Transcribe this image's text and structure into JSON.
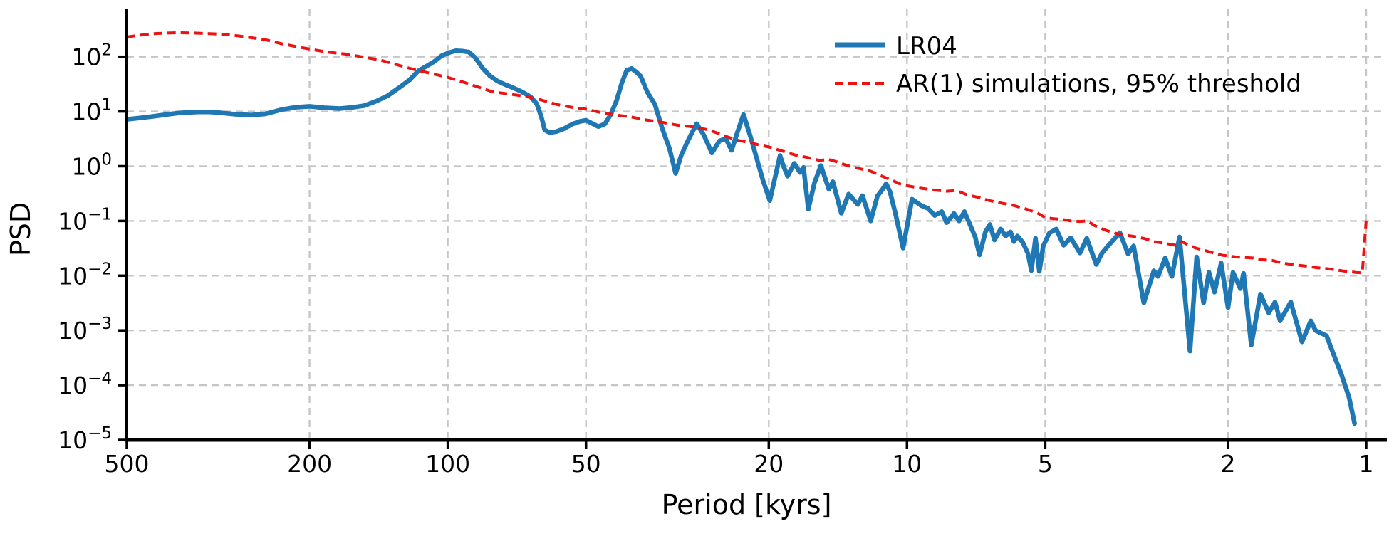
{
  "figure": {
    "background": "#ffffff"
  },
  "style": {
    "grid_color": "#c6c6c6",
    "grid_dash": "10 7",
    "grid_width": 2.4,
    "spine_color": "#000000",
    "tick_color": "#000000",
    "text_color": "#000000"
  },
  "legend": {
    "position": "upper right",
    "items": [
      {
        "label": "LR04",
        "color": "#1f77b4",
        "style": "solid"
      },
      {
        "label": "AR(1) simulations, 95% threshold",
        "color": "#ee1111",
        "style": "dashed"
      }
    ]
  },
  "chart_data": {
    "type": "line",
    "title": "",
    "xlabel": "Period [kyrs]",
    "ylabel": "PSD",
    "grid": true,
    "legend_position": "upper right",
    "x_axis": {
      "scale": "log",
      "inverted": true,
      "unit": "kyrs",
      "ticks": [
        500,
        200,
        100,
        50,
        20,
        10,
        5,
        2,
        1
      ],
      "range": [
        500,
        0.91
      ]
    },
    "y_axis": {
      "scale": "log",
      "tick_exponents": [
        2,
        1,
        0,
        -1,
        -2,
        -3,
        -4,
        -5
      ],
      "range_exponents": [
        -5,
        2.88
      ]
    },
    "series": [
      {
        "name": "LR04",
        "color": "#1f77b4",
        "line_style": "solid",
        "line_width": 6.5,
        "points": [
          [
            500,
            7.2
          ],
          [
            470,
            7.6
          ],
          [
            440,
            8.1
          ],
          [
            410,
            8.8
          ],
          [
            385,
            9.4
          ],
          [
            350,
            9.8
          ],
          [
            330,
            9.8
          ],
          [
            315,
            9.5
          ],
          [
            290,
            8.9
          ],
          [
            268,
            8.6
          ],
          [
            250,
            9.0
          ],
          [
            230,
            10.8
          ],
          [
            215,
            11.9
          ],
          [
            200,
            12.4
          ],
          [
            186,
            11.7
          ],
          [
            172,
            11.3
          ],
          [
            161,
            11.9
          ],
          [
            152,
            12.8
          ],
          [
            143,
            15.5
          ],
          [
            135,
            19.5
          ],
          [
            127,
            28
          ],
          [
            121,
            38
          ],
          [
            116,
            55
          ],
          [
            111,
            68
          ],
          [
            107,
            82
          ],
          [
            103,
            105
          ],
          [
            99,
            120
          ],
          [
            96,
            129
          ],
          [
            93,
            127
          ],
          [
            90,
            122
          ],
          [
            87,
            95
          ],
          [
            84,
            62
          ],
          [
            81,
            45
          ],
          [
            78,
            36
          ],
          [
            75,
            31
          ],
          [
            72,
            27
          ],
          [
            69,
            23
          ],
          [
            66,
            18.5
          ],
          [
            64,
            13.8
          ],
          [
            62.5,
            7.8
          ],
          [
            61.5,
            4.6
          ],
          [
            60,
            4.1
          ],
          [
            58,
            4.3
          ],
          [
            56,
            4.8
          ],
          [
            53.5,
            5.9
          ],
          [
            51.5,
            6.6
          ],
          [
            50,
            6.9
          ],
          [
            48.6,
            6.1
          ],
          [
            47,
            5.3
          ],
          [
            45.5,
            5.9
          ],
          [
            44.2,
            8.7
          ],
          [
            42.9,
            15.8
          ],
          [
            41.8,
            33
          ],
          [
            40.8,
            56
          ],
          [
            39.8,
            61
          ],
          [
            38.8,
            52
          ],
          [
            38,
            44
          ],
          [
            36.8,
            23
          ],
          [
            35.4,
            13.5
          ],
          [
            34.1,
            4.8
          ],
          [
            32.9,
            2.1
          ],
          [
            31.9,
            0.74
          ],
          [
            31,
            1.6
          ],
          [
            29.9,
            3.1
          ],
          [
            28.7,
            6.0
          ],
          [
            27.7,
            3.7
          ],
          [
            26.6,
            1.75
          ],
          [
            25.6,
            2.9
          ],
          [
            24.8,
            3.2
          ],
          [
            24.1,
            1.95
          ],
          [
            23.4,
            4.2
          ],
          [
            22.7,
            8.8
          ],
          [
            21.9,
            3.4
          ],
          [
            21.3,
            1.5
          ],
          [
            20.6,
            0.56
          ],
          [
            19.9,
            0.235
          ],
          [
            18.9,
            1.56
          ],
          [
            18.6,
            1.03
          ],
          [
            18.2,
            0.66
          ],
          [
            17.6,
            1.13
          ],
          [
            17.1,
            0.77
          ],
          [
            16.8,
            0.95
          ],
          [
            16.4,
            0.165
          ],
          [
            15.9,
            0.5
          ],
          [
            15.4,
            1.03
          ],
          [
            14.8,
            0.38
          ],
          [
            14.5,
            0.52
          ],
          [
            13.9,
            0.138
          ],
          [
            13.4,
            0.31
          ],
          [
            12.8,
            0.2
          ],
          [
            12.5,
            0.29
          ],
          [
            12.0,
            0.1
          ],
          [
            11.6,
            0.285
          ],
          [
            11.3,
            0.38
          ],
          [
            11.1,
            0.48
          ],
          [
            10.9,
            0.35
          ],
          [
            10.6,
            0.138
          ],
          [
            10.2,
            0.032
          ],
          [
            9.75,
            0.25
          ],
          [
            9.3,
            0.19
          ],
          [
            9.0,
            0.17
          ],
          [
            8.7,
            0.126
          ],
          [
            8.4,
            0.148
          ],
          [
            8.2,
            0.093
          ],
          [
            7.9,
            0.137
          ],
          [
            7.7,
            0.1
          ],
          [
            7.5,
            0.148
          ],
          [
            7.3,
            0.088
          ],
          [
            7.1,
            0.05
          ],
          [
            6.95,
            0.024
          ],
          [
            6.75,
            0.063
          ],
          [
            6.6,
            0.086
          ],
          [
            6.45,
            0.045
          ],
          [
            6.25,
            0.071
          ],
          [
            6.1,
            0.053
          ],
          [
            5.95,
            0.063
          ],
          [
            5.85,
            0.042
          ],
          [
            5.75,
            0.053
          ],
          [
            5.6,
            0.041
          ],
          [
            5.45,
            0.025
          ],
          [
            5.36,
            0.0124
          ],
          [
            5.25,
            0.048
          ],
          [
            5.15,
            0.012
          ],
          [
            5.05,
            0.035
          ],
          [
            4.9,
            0.06
          ],
          [
            4.73,
            0.071
          ],
          [
            4.56,
            0.036
          ],
          [
            4.4,
            0.049
          ],
          [
            4.2,
            0.026
          ],
          [
            4.06,
            0.048
          ],
          [
            3.87,
            0.016
          ],
          [
            3.76,
            0.026
          ],
          [
            3.65,
            0.035
          ],
          [
            3.44,
            0.061
          ],
          [
            3.3,
            0.025
          ],
          [
            3.21,
            0.035
          ],
          [
            3.05,
            0.0032
          ],
          [
            2.9,
            0.0123
          ],
          [
            2.84,
            0.0097
          ],
          [
            2.74,
            0.021
          ],
          [
            2.65,
            0.0097
          ],
          [
            2.55,
            0.051
          ],
          [
            2.42,
            0.00042
          ],
          [
            2.34,
            0.022
          ],
          [
            2.26,
            0.0032
          ],
          [
            2.2,
            0.0115
          ],
          [
            2.14,
            0.005
          ],
          [
            2.07,
            0.017
          ],
          [
            2.0,
            0.0026
          ],
          [
            1.95,
            0.0115
          ],
          [
            1.88,
            0.0058
          ],
          [
            1.85,
            0.011
          ],
          [
            1.78,
            0.00054
          ],
          [
            1.7,
            0.0046
          ],
          [
            1.63,
            0.0021
          ],
          [
            1.58,
            0.0033
          ],
          [
            1.54,
            0.0015
          ],
          [
            1.46,
            0.0033
          ],
          [
            1.38,
            0.00062
          ],
          [
            1.32,
            0.0015
          ],
          [
            1.29,
            0.001
          ],
          [
            1.22,
            0.0008
          ],
          [
            1.18,
            0.00038
          ],
          [
            1.13,
            0.00015
          ],
          [
            1.09,
            6e-05
          ],
          [
            1.06,
            2e-05
          ]
        ]
      },
      {
        "name": "AR(1) simulations, 95% threshold",
        "color": "#ee1111",
        "line_style": "dashed",
        "line_width": 4,
        "points": [
          [
            500,
            230
          ],
          [
            460,
            252
          ],
          [
            430,
            266
          ],
          [
            400,
            273
          ],
          [
            385,
            275
          ],
          [
            360,
            272
          ],
          [
            330,
            265
          ],
          [
            310,
            258
          ],
          [
            285,
            240
          ],
          [
            270,
            225
          ],
          [
            250,
            205
          ],
          [
            230,
            173
          ],
          [
            215,
            155
          ],
          [
            200,
            138
          ],
          [
            183,
            122
          ],
          [
            167,
            112
          ],
          [
            152,
            98
          ],
          [
            141,
            88
          ],
          [
            128,
            70
          ],
          [
            116,
            56
          ],
          [
            107,
            48
          ],
          [
            100,
            42
          ],
          [
            93,
            35
          ],
          [
            87,
            29
          ],
          [
            80,
            23
          ],
          [
            74,
            21
          ],
          [
            68,
            19
          ],
          [
            63,
            16.5
          ],
          [
            58,
            13.5
          ],
          [
            54,
            12
          ],
          [
            50,
            11
          ],
          [
            46,
            9.4
          ],
          [
            43,
            8.6
          ],
          [
            40,
            8.0
          ],
          [
            37,
            7.0
          ],
          [
            34,
            6.3
          ],
          [
            31.5,
            5.6
          ],
          [
            29,
            5.2
          ],
          [
            27,
            4.6
          ],
          [
            25,
            3.6
          ],
          [
            23.5,
            3.0
          ],
          [
            22,
            2.7
          ],
          [
            21,
            2.45
          ],
          [
            20,
            2.25
          ],
          [
            18.5,
            1.85
          ],
          [
            17.5,
            1.6
          ],
          [
            16.5,
            1.45
          ],
          [
            15.5,
            1.28
          ],
          [
            14.8,
            1.33
          ],
          [
            14.2,
            1.2
          ],
          [
            13.5,
            1.03
          ],
          [
            12.8,
            0.92
          ],
          [
            12.0,
            0.81
          ],
          [
            11.3,
            0.65
          ],
          [
            10.8,
            0.56
          ],
          [
            10.4,
            0.48
          ],
          [
            10.0,
            0.44
          ],
          [
            9.4,
            0.4
          ],
          [
            8.8,
            0.37
          ],
          [
            8.2,
            0.35
          ],
          [
            7.8,
            0.36
          ],
          [
            7.4,
            0.3
          ],
          [
            7.0,
            0.27
          ],
          [
            6.6,
            0.235
          ],
          [
            6.2,
            0.21
          ],
          [
            5.9,
            0.195
          ],
          [
            5.5,
            0.165
          ],
          [
            5.2,
            0.14
          ],
          [
            5.0,
            0.115
          ],
          [
            4.8,
            0.11
          ],
          [
            4.6,
            0.107
          ],
          [
            4.4,
            0.1
          ],
          [
            4.2,
            0.098
          ],
          [
            4.05,
            0.1
          ],
          [
            3.9,
            0.082
          ],
          [
            3.7,
            0.068
          ],
          [
            3.5,
            0.059
          ],
          [
            3.35,
            0.055
          ],
          [
            3.2,
            0.052
          ],
          [
            3.05,
            0.048
          ],
          [
            2.9,
            0.042
          ],
          [
            2.8,
            0.04
          ],
          [
            2.7,
            0.038
          ],
          [
            2.6,
            0.036
          ],
          [
            2.52,
            0.042
          ],
          [
            2.45,
            0.037
          ],
          [
            2.35,
            0.032
          ],
          [
            2.25,
            0.029
          ],
          [
            2.15,
            0.026
          ],
          [
            2.05,
            0.0235
          ],
          [
            2.0,
            0.023
          ],
          [
            1.92,
            0.022
          ],
          [
            1.84,
            0.0215
          ],
          [
            1.76,
            0.021
          ],
          [
            1.68,
            0.0195
          ],
          [
            1.6,
            0.019
          ],
          [
            1.52,
            0.017
          ],
          [
            1.45,
            0.016
          ],
          [
            1.4,
            0.0155
          ],
          [
            1.34,
            0.0148
          ],
          [
            1.28,
            0.014
          ],
          [
            1.22,
            0.0135
          ],
          [
            1.17,
            0.0128
          ],
          [
            1.12,
            0.0122
          ],
          [
            1.08,
            0.0118
          ],
          [
            1.05,
            0.0114
          ],
          [
            1.02,
            0.0113
          ],
          [
            1.0,
            0.105
          ]
        ]
      }
    ]
  }
}
